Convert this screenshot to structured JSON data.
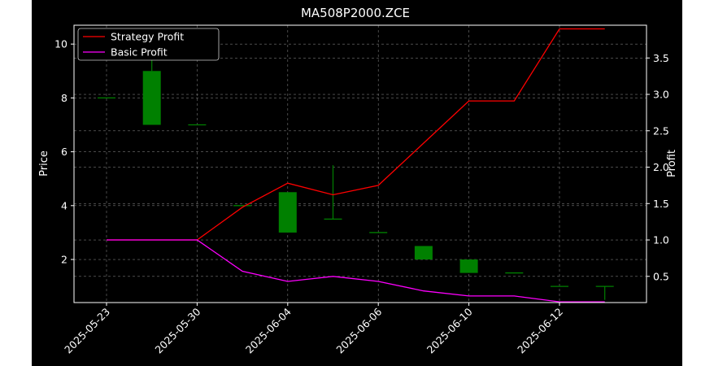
{
  "chart_data": {
    "type": "candlestick+line",
    "title": "MA508P2000.ZCE",
    "xlabel": "",
    "ylabel_left": "Price",
    "ylabel_right": "Profit",
    "x_tick_labels": [
      "2025-05-23",
      "2025-05-30",
      "2025-06-04",
      "2025-06-06",
      "2025-06-10",
      "2025-06-12"
    ],
    "x_tick_index": [
      0,
      2,
      4,
      6,
      8,
      10
    ],
    "left_ylim": [
      0.4,
      10.7
    ],
    "left_yticks": [
      2,
      4,
      6,
      8,
      10
    ],
    "right_ylim": [
      0.14,
      3.95
    ],
    "right_yticks": [
      0.5,
      1.0,
      1.5,
      2.0,
      2.5,
      3.0,
      3.5
    ],
    "right_ytick_labels": [
      "0.5",
      "1.0",
      "1.5",
      "2.0",
      "2.5",
      "3.0",
      "3.5"
    ],
    "grid": true,
    "legend": {
      "placement": "top-left",
      "entries": [
        "Strategy Profit",
        "Basic Profit"
      ]
    },
    "candles": [
      {
        "i": 0,
        "open": 8.0,
        "high": 8.0,
        "low": 8.0,
        "close": 8.0
      },
      {
        "i": 1,
        "open": 7.0,
        "high": 9.5,
        "low": 7.0,
        "close": 9.0
      },
      {
        "i": 2,
        "open": 7.0,
        "high": 7.0,
        "low": 7.0,
        "close": 7.0
      },
      {
        "i": 3,
        "open": 4.0,
        "high": 4.0,
        "low": 4.0,
        "close": 4.0
      },
      {
        "i": 4,
        "open": 3.0,
        "high": 4.5,
        "low": 3.0,
        "close": 4.5
      },
      {
        "i": 5,
        "open": 3.5,
        "high": 5.5,
        "low": 3.5,
        "close": 3.5
      },
      {
        "i": 6,
        "open": 3.0,
        "high": 3.0,
        "low": 3.0,
        "close": 3.0
      },
      {
        "i": 7,
        "open": 2.0,
        "high": 2.5,
        "low": 2.0,
        "close": 2.5
      },
      {
        "i": 8,
        "open": 1.5,
        "high": 2.0,
        "low": 1.5,
        "close": 2.0
      },
      {
        "i": 9,
        "open": 1.5,
        "high": 1.5,
        "low": 1.5,
        "close": 1.5
      },
      {
        "i": 10,
        "open": 1.0,
        "high": 1.0,
        "low": 1.0,
        "close": 1.0
      },
      {
        "i": 11,
        "open": 1.0,
        "high": 1.0,
        "low": 0.5,
        "close": 1.0
      }
    ],
    "series": [
      {
        "name": "Strategy Profit",
        "color": "#ff0000",
        "axis": "right",
        "x": [
          0,
          1,
          2,
          3,
          4,
          5,
          6,
          7,
          8,
          9,
          10,
          11
        ],
        "values": [
          1.0,
          1.0,
          1.0,
          1.45,
          1.78,
          1.62,
          1.75,
          2.33,
          2.91,
          2.91,
          3.9,
          3.9
        ]
      },
      {
        "name": "Basic Profit",
        "color": "#ff00ff",
        "axis": "right",
        "x": [
          0,
          1,
          2,
          3,
          4,
          5,
          6,
          7,
          8,
          9,
          10,
          11
        ],
        "values": [
          1.0,
          1.0,
          1.0,
          0.57,
          0.43,
          0.5,
          0.43,
          0.3,
          0.23,
          0.23,
          0.15,
          0.15
        ]
      }
    ],
    "colors": {
      "up": "#008000",
      "down": "#ff0000",
      "background": "#000000",
      "text": "#ffffff",
      "grid": "#777777"
    }
  }
}
